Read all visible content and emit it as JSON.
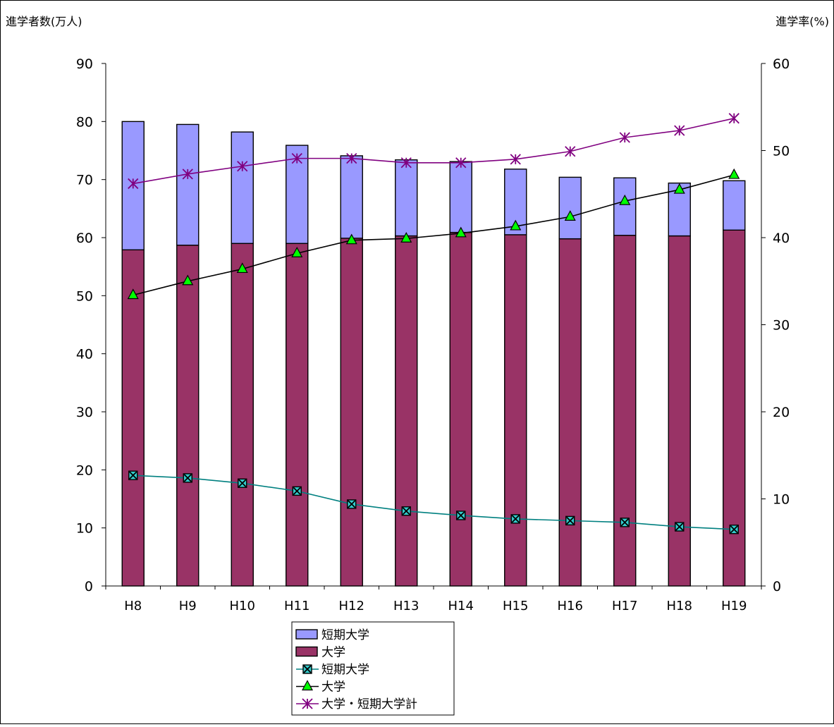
{
  "chart_data": {
    "type": "bar",
    "stacked": true,
    "categories": [
      "H8",
      "H9",
      "H10",
      "H11",
      "H12",
      "H13",
      "H14",
      "H15",
      "H16",
      "H17",
      "H18",
      "H19"
    ],
    "ylabel_left": "進学者数(万人)",
    "ylabel_right": "進学率(%)",
    "ylim_left": [
      0,
      90
    ],
    "ylim_right": [
      0,
      60
    ],
    "yticks_left": [
      "0",
      "10",
      "20",
      "30",
      "40",
      "50",
      "60",
      "70",
      "80",
      "90"
    ],
    "yticks_right": [
      "0",
      "10",
      "20",
      "30",
      "40",
      "50",
      "60"
    ],
    "grid": false,
    "legend_position": "bottom",
    "bar_series": [
      {
        "name": "大学",
        "color": "#993366",
        "values": [
          57.9,
          58.7,
          59.0,
          59.0,
          59.9,
          60.3,
          60.9,
          60.5,
          59.8,
          60.4,
          60.3,
          61.3
        ]
      },
      {
        "name": "短期大学",
        "color": "#9999FF",
        "values": [
          22.1,
          20.8,
          19.2,
          16.9,
          14.2,
          13.1,
          12.2,
          11.3,
          10.6,
          9.9,
          9.1,
          8.5
        ]
      }
    ],
    "line_series": [
      {
        "name": "短期大学",
        "axis": "right",
        "color": "#008080",
        "marker": "x-square",
        "marker_fill": "#33CCCC",
        "values": [
          12.7,
          12.4,
          11.8,
          10.9,
          9.4,
          8.6,
          8.1,
          7.7,
          7.5,
          7.3,
          6.8,
          6.5
        ]
      },
      {
        "name": "大学",
        "axis": "right",
        "color": "#000000",
        "marker": "triangle",
        "marker_fill": "#00FF00",
        "values": [
          33.4,
          35.0,
          36.4,
          38.2,
          39.7,
          39.9,
          40.5,
          41.3,
          42.4,
          44.2,
          45.5,
          47.2
        ]
      },
      {
        "name": "大学・短期大学計",
        "axis": "right",
        "color": "#800080",
        "marker": "asterisk",
        "values": [
          46.2,
          47.3,
          48.2,
          49.1,
          49.1,
          48.6,
          48.6,
          49.0,
          49.9,
          51.5,
          52.3,
          53.7
        ]
      }
    ],
    "legend": [
      {
        "label": "短期大学",
        "kind": "bar",
        "series_ref": "bar_series.1"
      },
      {
        "label": "大学",
        "kind": "bar",
        "series_ref": "bar_series.0"
      },
      {
        "label": "短期大学",
        "kind": "line",
        "series_ref": "line_series.0"
      },
      {
        "label": "大学",
        "kind": "line",
        "series_ref": "line_series.1"
      },
      {
        "label": "大学・短期大学計",
        "kind": "line",
        "series_ref": "line_series.2"
      }
    ]
  }
}
